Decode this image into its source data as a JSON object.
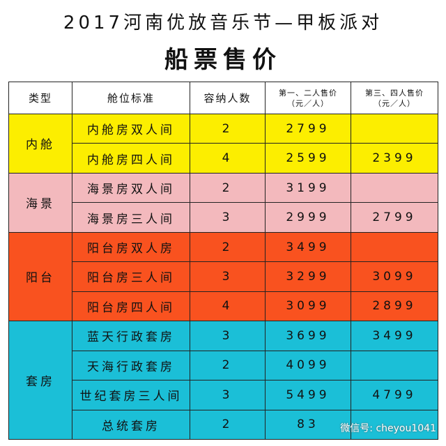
{
  "header": {
    "title": "2017河南优放音乐节—甲板派对",
    "subtitle": "船票售价"
  },
  "table": {
    "columns": [
      [
        "类型"
      ],
      [
        "舱位标准"
      ],
      [
        "容纳人数"
      ],
      [
        "第一、二人售价",
        "（元／人）"
      ],
      [
        "第三、四人售价",
        "（元／人）"
      ]
    ],
    "groups": [
      {
        "type": "内舱",
        "color": "#fcee00",
        "rows": [
          {
            "cabin": "内舱房双人间",
            "capacity": 2,
            "price12": 2799
          },
          {
            "cabin": "内舱房四人间",
            "capacity": 4,
            "price12": 2599,
            "price34": 2399
          }
        ]
      },
      {
        "type": "海景",
        "color": "#f3b9bd",
        "rows": [
          {
            "cabin": "海景房双人间",
            "capacity": 2,
            "price12": 3199
          },
          {
            "cabin": "海景房三人间",
            "capacity": 3,
            "price12": 2999,
            "price34": 2799
          }
        ]
      },
      {
        "type": "阳台",
        "color": "#f9521f",
        "rows": [
          {
            "cabin": "阳台房双人房",
            "capacity": 2,
            "price12": 3499
          },
          {
            "cabin": "阳台房三人间",
            "capacity": 3,
            "price12": 3299,
            "price34": 3099
          },
          {
            "cabin": "阳台房四人间",
            "capacity": 4,
            "price12": 3099,
            "price34": 2899
          }
        ]
      },
      {
        "type": "套房",
        "color": "#1bbfd7",
        "rows": [
          {
            "cabin": "蓝天行政套房",
            "capacity": 3,
            "price12": 3699,
            "price34": 3499
          },
          {
            "cabin": "天海行政套房",
            "capacity": 2,
            "price12": 4099
          },
          {
            "cabin": "世纪套房三人间",
            "capacity": 3,
            "price12": 5499,
            "price34": 4799
          },
          {
            "cabin": "总统套房",
            "capacity": 2,
            "price12": "83"
          }
        ]
      }
    ]
  },
  "watermark": "微信号: cheyou1041"
}
